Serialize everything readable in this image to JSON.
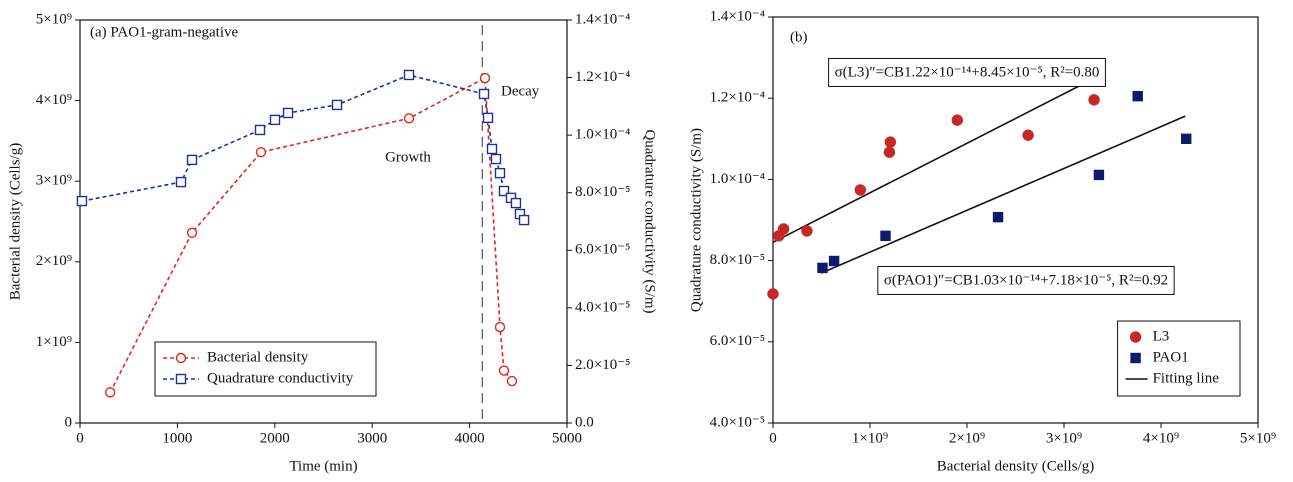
{
  "chart_data": [
    {
      "type": "line",
      "title": "(a) PAO1-gram-negative",
      "xlabel": "Time (min)",
      "ylabel": "Bacterial density (Cells/g)",
      "y2label": "Quadrature conductivity (S/m)",
      "annotations": [
        "Growth",
        "Decay"
      ],
      "xlim": [
        0,
        5000
      ],
      "xticks": [
        0,
        1000,
        2000,
        3000,
        4000,
        5000
      ],
      "ylim": [
        0,
        5000000000.0
      ],
      "yticks": [
        0,
        {
          "value": 1000000000.0,
          "label": "1×10⁹"
        },
        {
          "value": 2000000000.0,
          "label": "2×10⁹"
        },
        {
          "value": 3000000000.0,
          "label": "3×10⁹"
        },
        {
          "value": 4000000000.0,
          "label": "4×10⁹"
        },
        {
          "value": 5000000000.0,
          "label": "5×10⁹"
        }
      ],
      "y2lim": [
        0,
        0.00014
      ],
      "y2ticks": [
        {
          "value": 0,
          "label": "0.0"
        },
        {
          "value": 2e-05,
          "label": "2.0×10⁻⁵"
        },
        {
          "value": 4e-05,
          "label": "4.0×10⁻⁵"
        },
        {
          "value": 6e-05,
          "label": "6.0×10⁻⁵"
        },
        {
          "value": 8e-05,
          "label": "8.0×10⁻⁵"
        },
        {
          "value": 0.0001,
          "label": "1.0×10⁻⁴"
        },
        {
          "value": 0.00012,
          "label": "1.2×10⁻⁴"
        },
        {
          "value": 0.00014,
          "label": "1.4×10⁻⁴"
        }
      ],
      "vline": 4130,
      "legend": "lower left",
      "series": [
        {
          "name": "Bacterial density",
          "color": "#e8231e",
          "marker": "circle",
          "x": [
            310,
            1150,
            1858,
            3378,
            4158,
            4312,
            4353,
            4435
          ],
          "values": [
            380000000.0,
            2360000000.0,
            3360000000.0,
            3780000000.0,
            4280000000.0,
            1190000000.0,
            650000000.0,
            520000000.0
          ]
        },
        {
          "name": "Quadrature conductivity",
          "color": "#1f2f9e",
          "marker": "square",
          "axis": "y2",
          "x": [
            20,
            1037,
            1150,
            1848,
            2002,
            2136,
            2639,
            3378,
            4148,
            4189,
            4230,
            4271,
            4312,
            4353,
            4425,
            4476,
            4517,
            4559
          ],
          "values": [
            7.71e-05,
            8.37e-05,
            9.14e-05,
            0.0001018,
            0.0001053,
            0.0001077,
            0.0001105,
            0.0001209,
            0.0001143,
            0.000106,
            9.52e-05,
            9.17e-05,
            8.68e-05,
            8.06e-05,
            7.82e-05,
            7.64e-05,
            7.26e-05,
            7.05e-05
          ]
        }
      ]
    },
    {
      "type": "scatter",
      "title": "(b)",
      "xlabel": "Bacterial density (Cells/g)",
      "ylabel": "Quadrature conductivity (S/m)",
      "xlim": [
        0,
        5000000000.0
      ],
      "xticks": [
        0,
        {
          "value": 1000000000.0,
          "label": "1×10⁹"
        },
        {
          "value": 2000000000.0,
          "label": "2×10⁹"
        },
        {
          "value": 3000000000.0,
          "label": "3×10⁹"
        },
        {
          "value": 4000000000.0,
          "label": "4×10⁹"
        },
        {
          "value": 5000000000.0,
          "label": "5×10⁹"
        }
      ],
      "ylim": [
        4e-05,
        0.00014
      ],
      "yticks": [
        {
          "value": 4e-05,
          "label": "4.0×10⁻⁵"
        },
        {
          "value": 6e-05,
          "label": "6.0×10⁻⁵"
        },
        {
          "value": 8e-05,
          "label": "8.0×10⁻⁵"
        },
        {
          "value": 0.0001,
          "label": "1.0×10⁻⁴"
        },
        {
          "value": 0.00012,
          "label": "1.2×10⁻⁴"
        },
        {
          "value": 0.00014,
          "label": "1.4×10⁻⁴"
        }
      ],
      "legend": "lower right",
      "series": [
        {
          "name": "L3",
          "color": "#c62828",
          "marker": "circle",
          "x": [
            0,
            60000000.0,
            110000000.0,
            350000000.0,
            900000000.0,
            1200000000.0,
            1210000000.0,
            1900000000.0,
            2630000000.0,
            3310000000.0
          ],
          "values": [
            7.18e-05,
            8.61e-05,
            8.78e-05,
            8.73e-05,
            9.74e-05,
            0.0001067,
            0.0001092,
            0.0001146,
            0.0001109,
            0.0001196
          ]
        },
        {
          "name": "PAO1",
          "color": "#0d1b6e",
          "marker": "square",
          "x": [
            510000000.0,
            630000000.0,
            1160000000.0,
            2320000000.0,
            3360000000.0,
            3760000000.0,
            4260000000.0
          ],
          "values": [
            7.82e-05,
            7.99e-05,
            8.61e-05,
            9.07e-05,
            0.0001011,
            0.0001205,
            0.00011
          ]
        }
      ],
      "fits": [
        {
          "label": "σ(L3)″=CB1.22×10⁻¹⁴+8.45×10⁻⁵, R²=0.80",
          "slope": 1.22e-14,
          "intercept": 8.45e-05,
          "xlim": [
            0,
            3300000000.0
          ]
        },
        {
          "label": "σ(PAO1)″=CB1.03×10⁻¹⁴+7.18×10⁻⁵, R²=0.92",
          "slope": 1.03e-14,
          "intercept": 7.18e-05,
          "xlim": [
            500000000.0,
            4250000000.0
          ]
        }
      ],
      "fit_legend": "Fitting line"
    }
  ]
}
